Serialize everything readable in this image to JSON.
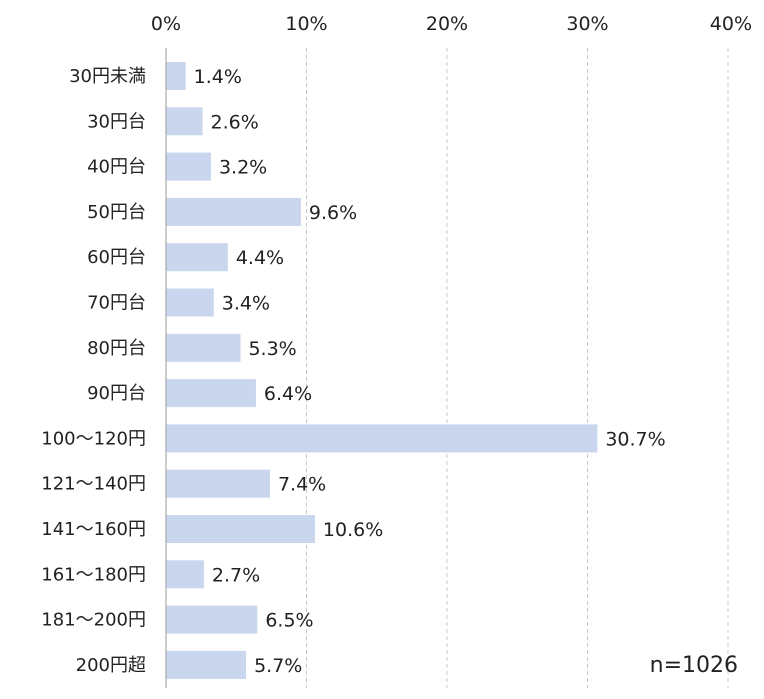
{
  "chart_data": {
    "type": "bar",
    "orientation": "horizontal",
    "categories": [
      "30円未満",
      "30円台",
      "40円台",
      "50円台",
      "60円台",
      "70円台",
      "80円台",
      "90円台",
      "100～120円",
      "121～140円",
      "141～160円",
      "161～180円",
      "181～200円",
      "200円超"
    ],
    "values": [
      1.4,
      2.6,
      3.2,
      9.6,
      4.4,
      3.4,
      5.3,
      6.4,
      30.7,
      7.4,
      10.6,
      2.7,
      6.5,
      5.7
    ],
    "value_labels": [
      "1.4%",
      "2.6%",
      "3.2%",
      "9.6%",
      "4.4%",
      "3.4%",
      "5.3%",
      "6.4%",
      "30.7%",
      "7.4%",
      "10.6%",
      "2.7%",
      "6.5%",
      "5.7%"
    ],
    "xlim": [
      0,
      40
    ],
    "x_ticks": [
      0,
      10,
      20,
      30,
      40
    ],
    "x_tick_labels": [
      "0%",
      "10%",
      "20%",
      "30%",
      "40%"
    ],
    "x_axis_position": "top",
    "grid": "vertical dashed",
    "bar_color": "#c9d6ee",
    "annotation": "n=1026"
  }
}
